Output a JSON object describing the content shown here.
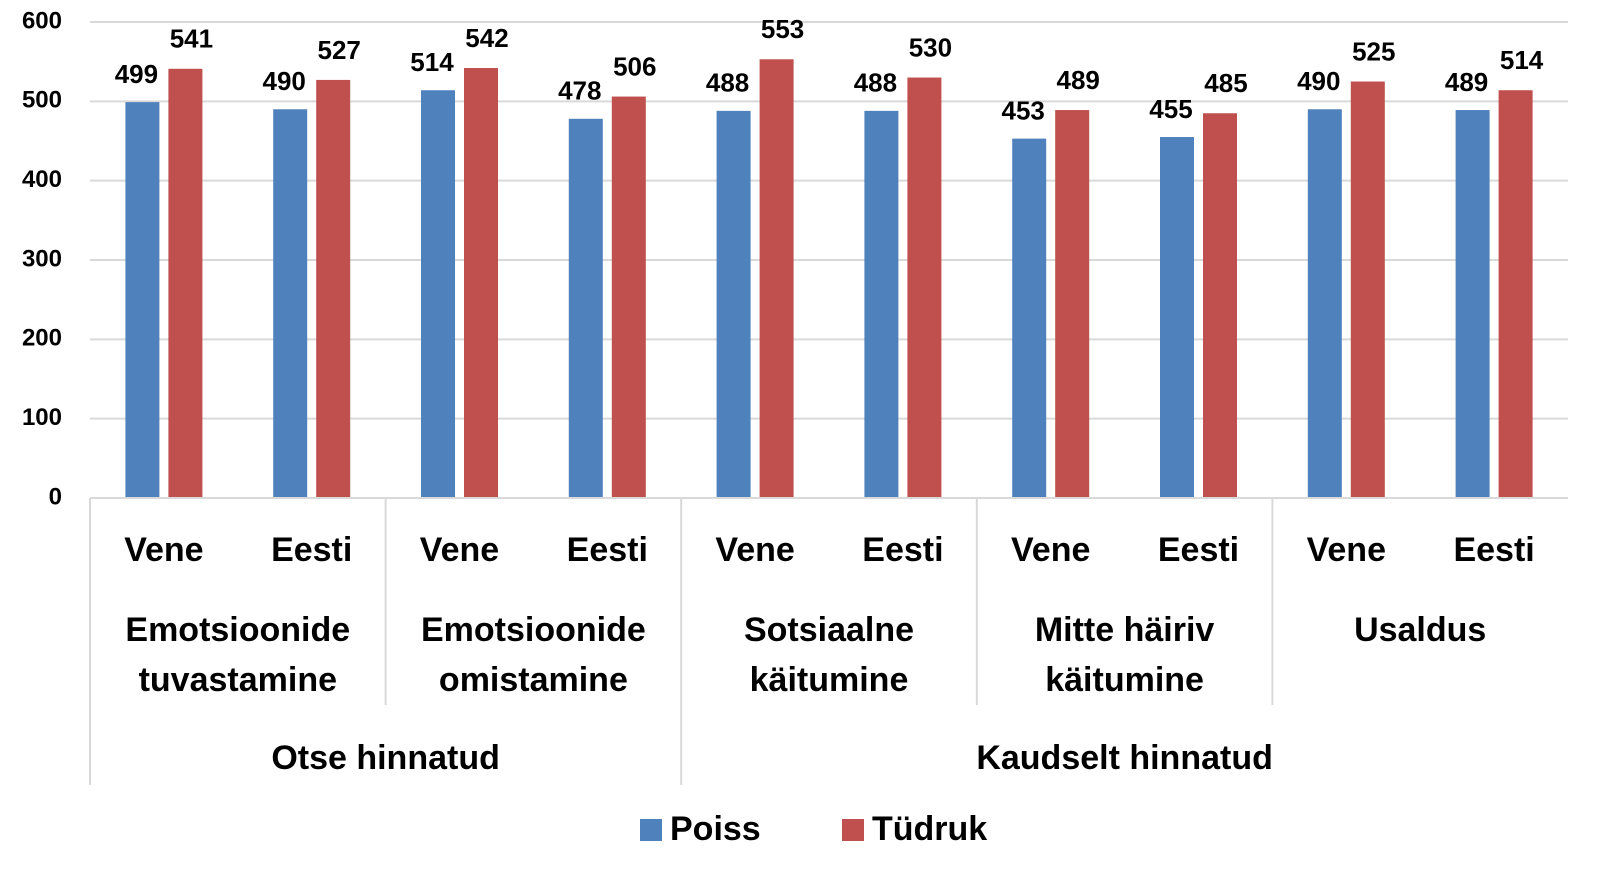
{
  "chart_data": {
    "type": "bar",
    "groups": [
      {
        "name": "Otse hinnatud",
        "subgroups": [
          {
            "label": [
              "Emotsioonide",
              "tuvastamine"
            ],
            "categories": [
              "Vene",
              "Eesti"
            ]
          },
          {
            "label": [
              "Emotsioonide",
              "omistamine"
            ],
            "categories": [
              "Vene",
              "Eesti"
            ]
          }
        ]
      },
      {
        "name": "Kaudselt hinnatud",
        "subgroups": [
          {
            "label": [
              "Sotsiaalne",
              "käitumine"
            ],
            "categories": [
              "Vene",
              "Eesti"
            ]
          },
          {
            "label": [
              "Mitte häiriv",
              "käitumine"
            ],
            "categories": [
              "Vene",
              "Eesti"
            ]
          },
          {
            "label": [
              "Usaldus"
            ],
            "categories": [
              "Vene",
              "Eesti"
            ]
          }
        ]
      }
    ],
    "series": [
      {
        "name": "Poiss",
        "color": "#4f81bd",
        "values": [
          499,
          490,
          514,
          478,
          488,
          488,
          453,
          455,
          490,
          489
        ]
      },
      {
        "name": "Tüdruk",
        "color": "#c0504d",
        "values": [
          541,
          527,
          542,
          506,
          553,
          530,
          489,
          485,
          525,
          514
        ]
      }
    ],
    "ylim": [
      0,
      600
    ],
    "yticks": [
      0,
      100,
      200,
      300,
      400,
      500,
      600
    ],
    "grid": true,
    "legend": "bottom"
  }
}
